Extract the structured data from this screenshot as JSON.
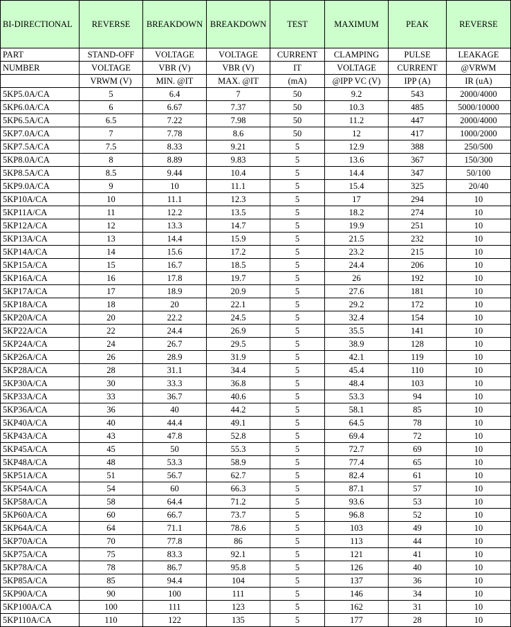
{
  "header": {
    "columns": [
      [
        "BI-DIRECTIONAL",
        "PART",
        "NUMBER"
      ],
      [
        "REVERSE",
        "STAND-OFF",
        "VOLTAGE",
        "VRWM (V)"
      ],
      [
        "BREAKDOWN",
        "VOLTAGE",
        "VBR (V)",
        "MIN. @IT"
      ],
      [
        "BREAKDOWN",
        "VOLTAGE",
        "VBR (V)",
        "MAX. @IT"
      ],
      [
        "TEST",
        "CURRENT",
        "IT",
        "(mA)"
      ],
      [
        "MAXIMUM",
        "CLAMPING",
        "VOLTAGE",
        "@IPP VC (V)"
      ],
      [
        "PEAK",
        "PULSE",
        "CURRENT",
        "IPP (A)"
      ],
      [
        "REVERSE",
        "LEAKAGE",
        "@VRWM",
        "IR (uA)"
      ]
    ]
  },
  "table": {
    "rows": [
      [
        "5KP5.0A/CA",
        "5",
        "6.4",
        "7",
        "50",
        "9.2",
        "543",
        "2000/4000"
      ],
      [
        "5KP6.0A/CA",
        "6",
        "6.67",
        "7.37",
        "50",
        "10.3",
        "485",
        "5000/10000"
      ],
      [
        "5KP6.5A/CA",
        "6.5",
        "7.22",
        "7.98",
        "50",
        "11.2",
        "447",
        "2000/4000"
      ],
      [
        "5KP7.0A/CA",
        "7",
        "7.78",
        "8.6",
        "50",
        "12",
        "417",
        "1000/2000"
      ],
      [
        "5KP7.5A/CA",
        "7.5",
        "8.33",
        "9.21",
        "5",
        "12.9",
        "388",
        "250/500"
      ],
      [
        "5KP8.0A/CA",
        "8",
        "8.89",
        "9.83",
        "5",
        "13.6",
        "367",
        "150/300"
      ],
      [
        "5KP8.5A/CA",
        "8.5",
        "9.44",
        "10.4",
        "5",
        "14.4",
        "347",
        "50/100"
      ],
      [
        "5KP9.0A/CA",
        "9",
        "10",
        "11.1",
        "5",
        "15.4",
        "325",
        "20/40"
      ],
      [
        "5KP10A/CA",
        "10",
        "11.1",
        "12.3",
        "5",
        "17",
        "294",
        "10"
      ],
      [
        "5KP11A/CA",
        "11",
        "12.2",
        "13.5",
        "5",
        "18.2",
        "274",
        "10"
      ],
      [
        "5KP12A/CA",
        "12",
        "13.3",
        "14.7",
        "5",
        "19.9",
        "251",
        "10"
      ],
      [
        "5KP13A/CA",
        "13",
        "14.4",
        "15.9",
        "5",
        "21.5",
        "232",
        "10"
      ],
      [
        "5KP14A/CA",
        "14",
        "15.6",
        "17.2",
        "5",
        "23.2",
        "215",
        "10"
      ],
      [
        "5KP15A/CA",
        "15",
        "16.7",
        "18.5",
        "5",
        "24.4",
        "206",
        "10"
      ],
      [
        "5KP16A/CA",
        "16",
        "17.8",
        "19.7",
        "5",
        "26",
        "192",
        "10"
      ],
      [
        "5KP17A/CA",
        "17",
        "18.9",
        "20.9",
        "5",
        "27.6",
        "181",
        "10"
      ],
      [
        "5KP18A/CA",
        "18",
        "20",
        "22.1",
        "5",
        "29.2",
        "172",
        "10"
      ],
      [
        "5KP20A/CA",
        "20",
        "22.2",
        "24.5",
        "5",
        "32.4",
        "154",
        "10"
      ],
      [
        "5KP22A/CA",
        "22",
        "24.4",
        "26.9",
        "5",
        "35.5",
        "141",
        "10"
      ],
      [
        "5KP24A/CA",
        "24",
        "26.7",
        "29.5",
        "5",
        "38.9",
        "128",
        "10"
      ],
      [
        "5KP26A/CA",
        "26",
        "28.9",
        "31.9",
        "5",
        "42.1",
        "119",
        "10"
      ],
      [
        "5KP28A/CA",
        "28",
        "31.1",
        "34.4",
        "5",
        "45.4",
        "110",
        "10"
      ],
      [
        "5KP30A/CA",
        "30",
        "33.3",
        "36.8",
        "5",
        "48.4",
        "103",
        "10"
      ],
      [
        "5KP33A/CA",
        "33",
        "36.7",
        "40.6",
        "5",
        "53.3",
        "94",
        "10"
      ],
      [
        "5KP36A/CA",
        "36",
        "40",
        "44.2",
        "5",
        "58.1",
        "85",
        "10"
      ],
      [
        "5KP40A/CA",
        "40",
        "44.4",
        "49.1",
        "5",
        "64.5",
        "78",
        "10"
      ],
      [
        "5KP43A/CA",
        "43",
        "47.8",
        "52.8",
        "5",
        "69.4",
        "72",
        "10"
      ],
      [
        "5KP45A/CA",
        "45",
        "50",
        "55.3",
        "5",
        "72.7",
        "69",
        "10"
      ],
      [
        "5KP48A/CA",
        "48",
        "53.3",
        "58.9",
        "5",
        "77.4",
        "65",
        "10"
      ],
      [
        "5KP51A/CA",
        "51",
        "56.7",
        "62.7",
        "5",
        "82.4",
        "61",
        "10"
      ],
      [
        "5KP54A/CA",
        "54",
        "60",
        "66.3",
        "5",
        "87.1",
        "57",
        "10"
      ],
      [
        "5KP58A/CA",
        "58",
        "64.4",
        "71.2",
        "5",
        "93.6",
        "53",
        "10"
      ],
      [
        "5KP60A/CA",
        "60",
        "66.7",
        "73.7",
        "5",
        "96.8",
        "52",
        "10"
      ],
      [
        "5KP64A/CA",
        "64",
        "71.1",
        "78.6",
        "5",
        "103",
        "49",
        "10"
      ],
      [
        "5KP70A/CA",
        "70",
        "77.8",
        "86",
        "5",
        "113",
        "44",
        "10"
      ],
      [
        "5KP75A/CA",
        "75",
        "83.3",
        "92.1",
        "5",
        "121",
        "41",
        "10"
      ],
      [
        "5KP78A/CA",
        "78",
        "86.7",
        "95.8",
        "5",
        "126",
        "40",
        "10"
      ],
      [
        "5KP85A/CA",
        "85",
        "94.4",
        "104",
        "5",
        "137",
        "36",
        "10"
      ],
      [
        "5KP90A/CA",
        "90",
        "100",
        "111",
        "5",
        "146",
        "34",
        "10"
      ],
      [
        "5KP100A/CA",
        "100",
        "111",
        "123",
        "5",
        "162",
        "31",
        "10"
      ],
      [
        "5KP110A/CA",
        "110",
        "122",
        "135",
        "5",
        "177",
        "28",
        "10"
      ]
    ]
  }
}
